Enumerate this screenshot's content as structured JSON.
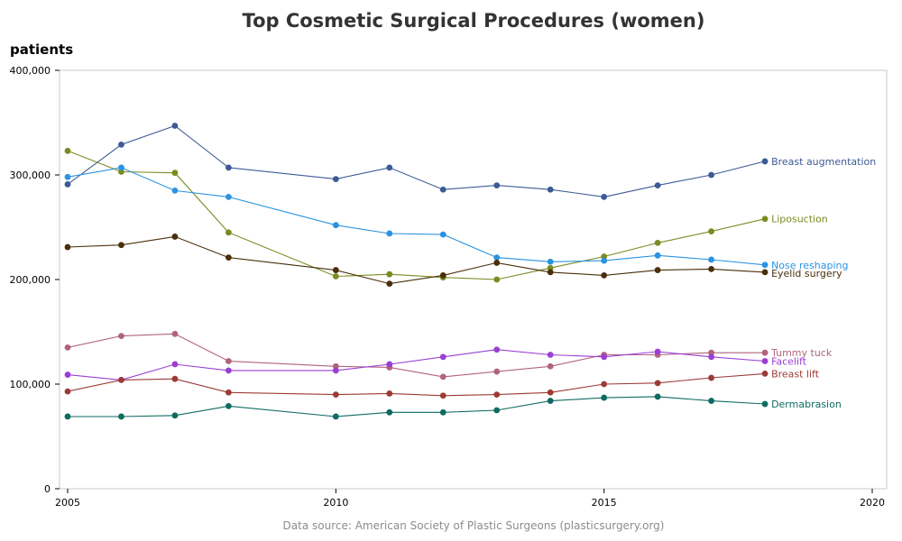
{
  "chart_data": {
    "type": "line",
    "title": "Top Cosmetic Surgical Procedures (women)",
    "ylabel": "patients",
    "xlabel": "",
    "source": "Data source: American Society of Plastic Surgeons (plasticsurgery.org)",
    "xlim": [
      2005,
      2020
    ],
    "ylim": [
      0,
      400000
    ],
    "x_ticks": [
      2005,
      2010,
      2015,
      2020
    ],
    "x_tick_labels": [
      "2005",
      "2010",
      "2015",
      "2020"
    ],
    "y_ticks": [
      0,
      100000,
      200000,
      300000,
      400000
    ],
    "y_tick_labels": [
      "0",
      "100,000",
      "200,000",
      "300,000",
      "400,000"
    ],
    "grid": false,
    "legend": "inline-right",
    "series": [
      {
        "name": "Breast augmentation",
        "color": "#3d5a95",
        "x": [
          2005,
          2006,
          2007,
          2008,
          2010,
          2011,
          2012,
          2013,
          2014,
          2015,
          2016,
          2017,
          2018
        ],
        "values": [
          291000,
          329000,
          347000,
          307000,
          296000,
          307000,
          286000,
          290000,
          286000,
          279000,
          290000,
          300000,
          313000
        ]
      },
      {
        "name": "Liposuction",
        "color": "#7b8b21",
        "x": [
          2005,
          2006,
          2007,
          2008,
          2010,
          2011,
          2012,
          2013,
          2014,
          2015,
          2016,
          2017,
          2018
        ],
        "values": [
          323000,
          303000,
          302000,
          245000,
          203000,
          205000,
          202000,
          200000,
          211000,
          222000,
          235000,
          246000,
          258000
        ]
      },
      {
        "name": "Nose reshaping",
        "color": "#2b93e0",
        "x": [
          2005,
          2006,
          2007,
          2008,
          2010,
          2011,
          2012,
          2013,
          2014,
          2015,
          2016,
          2017,
          2018
        ],
        "values": [
          298000,
          307000,
          285000,
          279000,
          252000,
          244000,
          243000,
          221000,
          217000,
          218000,
          223000,
          219000,
          214000
        ]
      },
      {
        "name": "Eyelid surgery",
        "color": "#4a2e0c",
        "x": [
          2005,
          2006,
          2007,
          2008,
          2010,
          2011,
          2012,
          2013,
          2014,
          2015,
          2016,
          2017,
          2018
        ],
        "values": [
          231000,
          233000,
          241000,
          221000,
          209000,
          196000,
          204000,
          216000,
          207000,
          204000,
          209000,
          210000,
          207000
        ]
      },
      {
        "name": "Tummy tuck",
        "color": "#b0647c",
        "x": [
          2005,
          2006,
          2007,
          2008,
          2010,
          2011,
          2012,
          2013,
          2014,
          2015,
          2016,
          2017,
          2018
        ],
        "values": [
          135000,
          146000,
          148000,
          122000,
          117000,
          116000,
          107000,
          112000,
          117000,
          128000,
          128000,
          130000,
          130000
        ]
      },
      {
        "name": "Facelift",
        "color": "#9a3ed4",
        "x": [
          2005,
          2006,
          2007,
          2008,
          2010,
          2011,
          2012,
          2013,
          2014,
          2015,
          2016,
          2017,
          2018
        ],
        "values": [
          109000,
          104000,
          119000,
          113000,
          113000,
          119000,
          126000,
          133000,
          128000,
          126000,
          131000,
          126000,
          122000
        ]
      },
      {
        "name": "Breast lift",
        "color": "#9c3b36",
        "x": [
          2005,
          2006,
          2007,
          2008,
          2010,
          2011,
          2012,
          2013,
          2014,
          2015,
          2016,
          2017,
          2018
        ],
        "values": [
          93000,
          104000,
          105000,
          92000,
          90000,
          91000,
          89000,
          90000,
          92000,
          100000,
          101000,
          106000,
          110000
        ]
      },
      {
        "name": "Dermabrasion",
        "color": "#0f6b61",
        "x": [
          2005,
          2006,
          2007,
          2008,
          2010,
          2011,
          2012,
          2013,
          2014,
          2015,
          2016,
          2017,
          2018
        ],
        "values": [
          69000,
          69000,
          70000,
          79000,
          69000,
          73000,
          73000,
          75000,
          84000,
          87000,
          88000,
          84000,
          81000
        ]
      }
    ]
  }
}
